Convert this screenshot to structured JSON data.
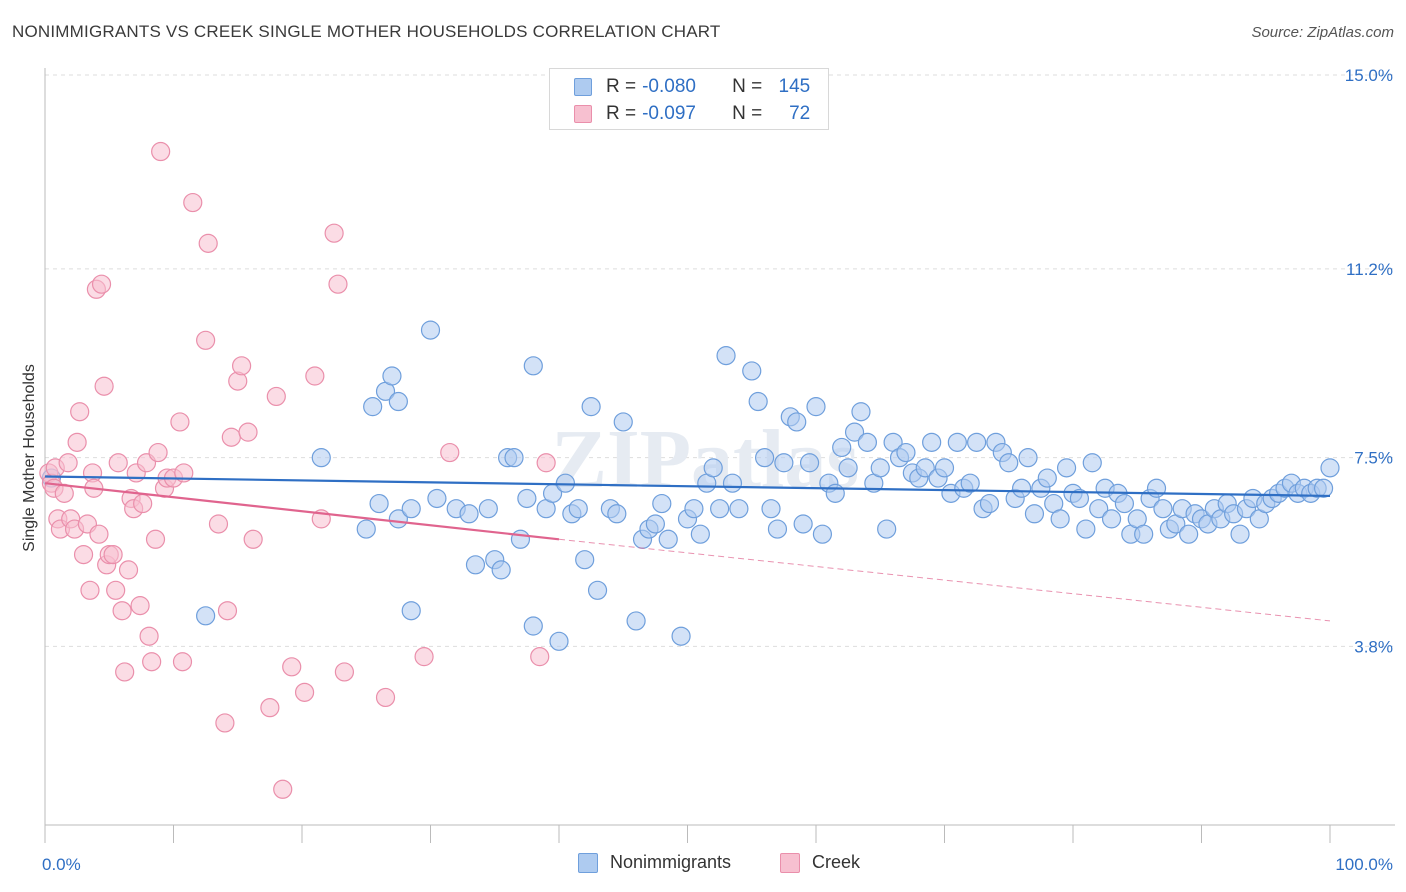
{
  "title": "NONIMMIGRANTS VS CREEK SINGLE MOTHER HOUSEHOLDS CORRELATION CHART",
  "source": "Source: ZipAtlas.com",
  "watermark": "ZIPatlas",
  "legend": {
    "rows": [
      {
        "r_label": "R =",
        "r_value": "-0.080",
        "n_label": "N =",
        "n_value": "145"
      },
      {
        "r_label": "R =",
        "r_value": "-0.097",
        "n_label": "N =",
        "n_value": "72"
      }
    ]
  },
  "bottom_legend": [
    "Nonimmigrants",
    "Creek"
  ],
  "colors": {
    "blue_fill": "#aecbf0",
    "blue_stroke": "#6f9fdc",
    "blue_line": "#2f6fc4",
    "pink_fill": "#f7c0d0",
    "pink_stroke": "#ea8fab",
    "pink_line": "#e0648e",
    "grid": "#dddddd",
    "tick_text": "#2f6fc4"
  },
  "chart_data": {
    "type": "scatter",
    "title": "NONIMMIGRANTS VS CREEK SINGLE MOTHER HOUSEHOLDS CORRELATION CHART",
    "xlabel": "",
    "ylabel": "Single Mother Households",
    "xlim": [
      0,
      100
    ],
    "ylim": [
      0.3,
      15.0
    ],
    "x_tick_labels": [
      "0.0%",
      "100.0%"
    ],
    "y_ticks": [
      3.8,
      7.5,
      11.2,
      15.0
    ],
    "y_tick_labels": [
      "3.8%",
      "7.5%",
      "11.2%",
      "15.0%"
    ],
    "grid": "horizontal dashed",
    "legend_position": "top-center",
    "series": [
      {
        "name": "Nonimmigrants",
        "R": -0.08,
        "N": 145,
        "trend": {
          "x0": 0,
          "y0": 7.13,
          "x1": 100,
          "y1": 6.75,
          "style": "solid"
        },
        "points": [
          [
            0.5,
            7.1
          ],
          [
            12.5,
            4.4
          ],
          [
            21.5,
            7.5
          ],
          [
            25.5,
            8.5
          ],
          [
            25,
            6.1
          ],
          [
            26,
            6.6
          ],
          [
            26.5,
            8.8
          ],
          [
            27,
            9.1
          ],
          [
            27.5,
            8.6
          ],
          [
            27.5,
            6.3
          ],
          [
            28.5,
            4.5
          ],
          [
            28.5,
            6.5
          ],
          [
            30,
            10.0
          ],
          [
            30.5,
            6.7
          ],
          [
            32,
            6.5
          ],
          [
            33,
            6.4
          ],
          [
            33.5,
            5.4
          ],
          [
            34.5,
            6.5
          ],
          [
            35,
            5.5
          ],
          [
            35.5,
            5.3
          ],
          [
            36,
            7.5
          ],
          [
            36.5,
            7.5
          ],
          [
            37,
            5.9
          ],
          [
            37.5,
            6.7
          ],
          [
            38,
            9.3
          ],
          [
            38,
            4.2
          ],
          [
            39,
            6.5
          ],
          [
            39.5,
            6.8
          ],
          [
            40,
            3.9
          ],
          [
            40.5,
            7.0
          ],
          [
            41,
            6.4
          ],
          [
            41.5,
            6.5
          ],
          [
            42,
            5.5
          ],
          [
            42.5,
            8.5
          ],
          [
            43,
            4.9
          ],
          [
            44,
            6.5
          ],
          [
            44.5,
            6.4
          ],
          [
            45,
            8.2
          ],
          [
            46,
            4.3
          ],
          [
            46.5,
            5.9
          ],
          [
            47,
            6.1
          ],
          [
            47.5,
            6.2
          ],
          [
            48,
            6.6
          ],
          [
            48.5,
            5.9
          ],
          [
            49.5,
            4.0
          ],
          [
            50,
            6.3
          ],
          [
            50.5,
            6.5
          ],
          [
            51,
            6.0
          ],
          [
            51.5,
            7.0
          ],
          [
            52,
            7.3
          ],
          [
            52.5,
            6.5
          ],
          [
            53,
            9.5
          ],
          [
            53.5,
            7.0
          ],
          [
            54,
            6.5
          ],
          [
            55,
            9.2
          ],
          [
            55.5,
            8.6
          ],
          [
            56,
            7.5
          ],
          [
            56.5,
            6.5
          ],
          [
            57,
            6.1
          ],
          [
            57.5,
            7.4
          ],
          [
            58,
            8.3
          ],
          [
            58.5,
            8.2
          ],
          [
            59,
            6.2
          ],
          [
            59.5,
            7.4
          ],
          [
            60,
            8.5
          ],
          [
            60.5,
            6.0
          ],
          [
            61,
            7.0
          ],
          [
            61.5,
            6.8
          ],
          [
            62,
            7.7
          ],
          [
            62.5,
            7.3
          ],
          [
            63,
            8.0
          ],
          [
            63.5,
            8.4
          ],
          [
            64,
            7.8
          ],
          [
            64.5,
            7.0
          ],
          [
            65,
            7.3
          ],
          [
            65.5,
            6.1
          ],
          [
            66,
            7.8
          ],
          [
            66.5,
            7.5
          ],
          [
            67,
            7.6
          ],
          [
            67.5,
            7.2
          ],
          [
            68,
            7.1
          ],
          [
            68.5,
            7.3
          ],
          [
            69,
            7.8
          ],
          [
            69.5,
            7.1
          ],
          [
            70,
            7.3
          ],
          [
            70.5,
            6.8
          ],
          [
            71,
            7.8
          ],
          [
            71.5,
            6.9
          ],
          [
            72,
            7.0
          ],
          [
            72.5,
            7.8
          ],
          [
            73,
            6.5
          ],
          [
            73.5,
            6.6
          ],
          [
            74,
            7.8
          ],
          [
            74.5,
            7.6
          ],
          [
            75,
            7.4
          ],
          [
            75.5,
            6.7
          ],
          [
            76,
            6.9
          ],
          [
            76.5,
            7.5
          ],
          [
            77,
            6.4
          ],
          [
            77.5,
            6.9
          ],
          [
            78,
            7.1
          ],
          [
            78.5,
            6.6
          ],
          [
            79,
            6.3
          ],
          [
            79.5,
            7.3
          ],
          [
            80,
            6.8
          ],
          [
            80.5,
            6.7
          ],
          [
            81,
            6.1
          ],
          [
            81.5,
            7.4
          ],
          [
            82,
            6.5
          ],
          [
            82.5,
            6.9
          ],
          [
            83,
            6.3
          ],
          [
            83.5,
            6.8
          ],
          [
            84,
            6.6
          ],
          [
            84.5,
            6.0
          ],
          [
            85,
            6.3
          ],
          [
            85.5,
            6.0
          ],
          [
            86,
            6.7
          ],
          [
            86.5,
            6.9
          ],
          [
            87,
            6.5
          ],
          [
            87.5,
            6.1
          ],
          [
            88,
            6.2
          ],
          [
            88.5,
            6.5
          ],
          [
            89,
            6.0
          ],
          [
            89.5,
            6.4
          ],
          [
            90,
            6.3
          ],
          [
            90.5,
            6.2
          ],
          [
            91,
            6.5
          ],
          [
            91.5,
            6.3
          ],
          [
            92,
            6.6
          ],
          [
            92.5,
            6.4
          ],
          [
            93,
            6.0
          ],
          [
            93.5,
            6.5
          ],
          [
            94,
            6.7
          ],
          [
            94.5,
            6.3
          ],
          [
            95,
            6.6
          ],
          [
            95.5,
            6.7
          ],
          [
            96,
            6.8
          ],
          [
            96.5,
            6.9
          ],
          [
            97,
            7.0
          ],
          [
            97.5,
            6.8
          ],
          [
            98,
            6.9
          ],
          [
            98.5,
            6.8
          ],
          [
            99,
            6.9
          ],
          [
            99.5,
            6.9
          ],
          [
            100,
            7.3
          ]
        ]
      },
      {
        "name": "Creek",
        "R": -0.097,
        "N": 72,
        "trend": {
          "x0": 0,
          "y0": 7.0,
          "x1": 40,
          "y1": 5.9,
          "style": "solid",
          "dashed_to": {
            "x": 100,
            "y": 4.3
          }
        },
        "points": [
          [
            0.3,
            7.2
          ],
          [
            0.5,
            7.0
          ],
          [
            0.7,
            6.9
          ],
          [
            0.8,
            7.3
          ],
          [
            1.0,
            6.3
          ],
          [
            1.2,
            6.1
          ],
          [
            1.5,
            6.8
          ],
          [
            1.8,
            7.4
          ],
          [
            2.0,
            6.3
          ],
          [
            2.3,
            6.1
          ],
          [
            2.5,
            7.8
          ],
          [
            2.7,
            8.4
          ],
          [
            3.0,
            5.6
          ],
          [
            3.3,
            6.2
          ],
          [
            3.5,
            4.9
          ],
          [
            3.7,
            7.2
          ],
          [
            3.8,
            6.9
          ],
          [
            4.0,
            10.8
          ],
          [
            4.2,
            6.0
          ],
          [
            4.4,
            10.9
          ],
          [
            4.6,
            8.9
          ],
          [
            4.8,
            5.4
          ],
          [
            5.0,
            5.6
          ],
          [
            5.3,
            5.6
          ],
          [
            5.5,
            4.9
          ],
          [
            5.7,
            7.4
          ],
          [
            6.0,
            4.5
          ],
          [
            6.2,
            3.3
          ],
          [
            6.5,
            5.3
          ],
          [
            6.7,
            6.7
          ],
          [
            6.9,
            6.5
          ],
          [
            7.1,
            7.2
          ],
          [
            7.4,
            4.6
          ],
          [
            7.6,
            6.6
          ],
          [
            7.9,
            7.4
          ],
          [
            8.1,
            4.0
          ],
          [
            8.3,
            3.5
          ],
          [
            8.6,
            5.9
          ],
          [
            8.8,
            7.6
          ],
          [
            9.0,
            13.5
          ],
          [
            9.3,
            6.9
          ],
          [
            9.5,
            7.1
          ],
          [
            10.0,
            7.1
          ],
          [
            10.5,
            8.2
          ],
          [
            10.7,
            3.5
          ],
          [
            10.8,
            7.2
          ],
          [
            11.5,
            12.5
          ],
          [
            12.5,
            9.8
          ],
          [
            12.7,
            11.7
          ],
          [
            13.5,
            6.2
          ],
          [
            14.0,
            2.3
          ],
          [
            14.2,
            4.5
          ],
          [
            14.5,
            7.9
          ],
          [
            15.0,
            9.0
          ],
          [
            15.3,
            9.3
          ],
          [
            15.8,
            8.0
          ],
          [
            16.2,
            5.9
          ],
          [
            17.5,
            2.6
          ],
          [
            18.0,
            8.7
          ],
          [
            18.5,
            1.0
          ],
          [
            19.2,
            3.4
          ],
          [
            20.2,
            2.9
          ],
          [
            21.0,
            9.1
          ],
          [
            21.5,
            6.3
          ],
          [
            22.5,
            11.9
          ],
          [
            22.8,
            10.9
          ],
          [
            23.3,
            3.3
          ],
          [
            26.5,
            2.8
          ],
          [
            29.5,
            3.6
          ],
          [
            31.5,
            7.6
          ],
          [
            38.5,
            3.6
          ],
          [
            39.0,
            7.4
          ]
        ]
      }
    ]
  }
}
